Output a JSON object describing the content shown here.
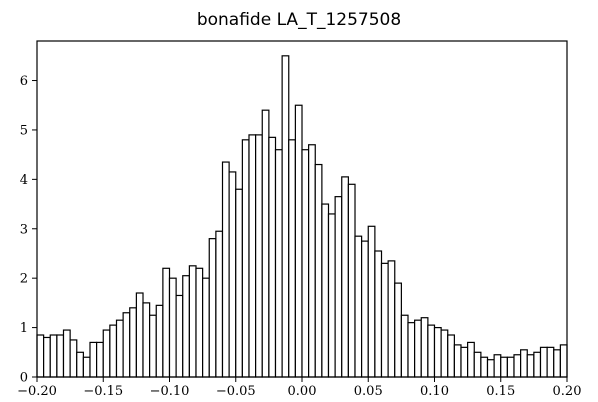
{
  "chart_data": {
    "type": "bar",
    "title": "bonafide LA_T_1257508",
    "xlabel": "",
    "ylabel": "",
    "xlim": [
      -0.2,
      0.2
    ],
    "ylim": [
      0,
      6.8
    ],
    "bins": {
      "start": -0.2,
      "width": 0.005,
      "values": [
        0.85,
        0.8,
        0.85,
        0.85,
        0.95,
        0.75,
        0.5,
        0.4,
        0.7,
        0.7,
        0.95,
        1.05,
        1.15,
        1.3,
        1.4,
        1.7,
        1.5,
        1.25,
        1.45,
        2.2,
        2.0,
        1.65,
        2.05,
        2.25,
        2.2,
        2.0,
        2.8,
        2.95,
        4.35,
        4.15,
        3.8,
        4.8,
        4.9,
        4.9,
        5.4,
        4.85,
        4.6,
        6.5,
        4.8,
        5.5,
        4.6,
        4.7,
        4.3,
        3.5,
        3.3,
        3.65,
        4.05,
        3.9,
        2.85,
        2.75,
        3.05,
        2.55,
        2.3,
        2.35,
        1.9,
        1.25,
        1.1,
        1.15,
        1.2,
        1.05,
        1.0,
        0.95,
        0.85,
        0.65,
        0.6,
        0.7,
        0.5,
        0.4,
        0.35,
        0.45,
        0.4,
        0.4,
        0.45,
        0.55,
        0.45,
        0.5,
        0.6,
        0.6,
        0.55,
        0.65
      ]
    },
    "x_ticks": [
      "-0.20",
      "-0.15",
      "-0.10",
      "-0.05",
      "0.00",
      "0.05",
      "0.10",
      "0.15",
      "0.20"
    ],
    "y_ticks": [
      "0",
      "1",
      "2",
      "3",
      "4",
      "5",
      "6"
    ],
    "bar_fill": "#ffffff",
    "bar_edge": "#000000",
    "grid": false,
    "legend": "none"
  }
}
